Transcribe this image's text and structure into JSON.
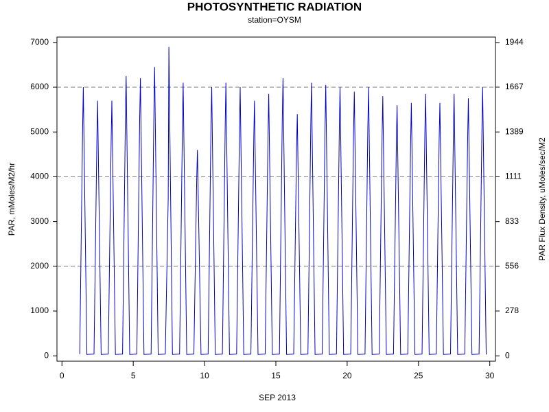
{
  "chart_data": {
    "type": "line",
    "title": "PHOTOSYNTHETIC RADIATION",
    "subtitle": "station=OYSM",
    "x_label": "SEP 2013",
    "y_label": "PAR, mMoles/M2/hr",
    "y2_label": "PAR Flux Density, uMoles/sec/M2",
    "xlim": [
      -0.35,
      30.4
    ],
    "xticks": [
      0,
      5,
      10,
      15,
      20,
      25,
      30
    ],
    "ylim": [
      -120,
      7120
    ],
    "yticks": [
      0,
      1000,
      2000,
      3000,
      4000,
      5000,
      6000,
      7000
    ],
    "y2lim": [
      -33.33,
      1977.78
    ],
    "y2ticks": [
      0,
      278,
      556,
      833,
      1111,
      1389,
      1667,
      1944
    ],
    "grid_values": [
      2000,
      4000,
      6000
    ],
    "series": [
      {
        "name": "PAR",
        "color": "#0000cc",
        "x": [
          1.25,
          1.45,
          1.5,
          1.75,
          2.25,
          2.45,
          2.5,
          2.75,
          3.25,
          3.45,
          3.5,
          3.75,
          4.25,
          4.45,
          4.5,
          4.75,
          5.25,
          5.45,
          5.5,
          5.75,
          6.25,
          6.45,
          6.5,
          6.75,
          7.25,
          7.45,
          7.5,
          7.75,
          8.25,
          8.45,
          8.5,
          8.75,
          9.25,
          9.45,
          9.5,
          9.75,
          10.25,
          10.45,
          10.5,
          10.75,
          11.25,
          11.45,
          11.5,
          11.75,
          12.25,
          12.45,
          12.5,
          12.75,
          13.25,
          13.45,
          13.5,
          13.75,
          14.25,
          14.45,
          14.5,
          14.75,
          15.25,
          15.45,
          15.5,
          15.75,
          16.25,
          16.45,
          16.5,
          16.75,
          17.25,
          17.45,
          17.5,
          17.75,
          18.25,
          18.45,
          18.5,
          18.75,
          19.25,
          19.45,
          19.5,
          19.75,
          20.25,
          20.45,
          20.5,
          20.75,
          21.25,
          21.45,
          21.5,
          21.75,
          22.25,
          22.45,
          22.5,
          22.75,
          23.25,
          23.45,
          23.5,
          23.75,
          24.25,
          24.45,
          24.5,
          24.75,
          25.25,
          25.45,
          25.5,
          25.75,
          26.25,
          26.45,
          26.5,
          26.75,
          27.25,
          27.45,
          27.5,
          27.75,
          28.25,
          28.45,
          28.5,
          28.75,
          29.25,
          29.45,
          29.5,
          29.75
        ],
        "values": [
          40,
          5100,
          6000,
          30,
          40,
          4850,
          5700,
          30,
          40,
          4850,
          5700,
          30,
          40,
          5300,
          6250,
          30,
          40,
          5270,
          6200,
          30,
          40,
          5480,
          6450,
          30,
          40,
          3500,
          6900,
          30,
          40,
          5190,
          6100,
          30,
          40,
          3900,
          4600,
          30,
          40,
          5100,
          6000,
          30,
          40,
          5190,
          6100,
          30,
          40,
          5100,
          6000,
          30,
          40,
          4850,
          5700,
          30,
          40,
          4970,
          5850,
          30,
          40,
          5270,
          6200,
          30,
          40,
          4590,
          5400,
          30,
          40,
          5190,
          6100,
          30,
          40,
          5140,
          6050,
          30,
          40,
          5100,
          6000,
          30,
          40,
          5020,
          5900,
          30,
          40,
          5100,
          6000,
          30,
          40,
          4930,
          5800,
          30,
          40,
          4760,
          5600,
          30,
          40,
          4800,
          5650,
          30,
          40,
          4970,
          5850,
          30,
          40,
          4800,
          5650,
          30,
          40,
          4970,
          5850,
          30,
          40,
          4890,
          5750,
          30,
          40,
          5100,
          6000,
          30
        ]
      }
    ]
  }
}
